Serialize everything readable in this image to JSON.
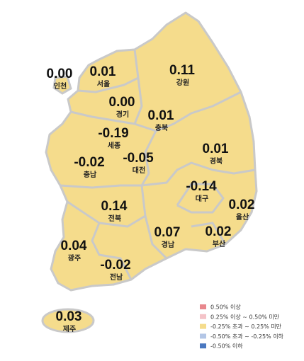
{
  "regions": [
    {
      "name": "인천",
      "value": "0.00"
    },
    {
      "name": "서울",
      "value": "0.01"
    },
    {
      "name": "강원",
      "value": "0.11"
    },
    {
      "name": "경기",
      "value": "0.00"
    },
    {
      "name": "충북",
      "value": "0.01"
    },
    {
      "name": "세종",
      "value": "-0.19"
    },
    {
      "name": "경북",
      "value": "0.01"
    },
    {
      "name": "충남",
      "value": "-0.02"
    },
    {
      "name": "대전",
      "value": "-0.05"
    },
    {
      "name": "대구",
      "value": "-0.14"
    },
    {
      "name": "울산",
      "value": "0.02"
    },
    {
      "name": "전북",
      "value": "0.14"
    },
    {
      "name": "경남",
      "value": "0.07"
    },
    {
      "name": "부산",
      "value": "0.02"
    },
    {
      "name": "광주",
      "value": "0.04"
    },
    {
      "name": "전남",
      "value": "-0.02"
    },
    {
      "name": "제주",
      "value": "0.03"
    }
  ],
  "legend": [
    {
      "label": "0.50% 이상",
      "color": "#e8878d"
    },
    {
      "label": "0.25% 이상 ~ 0.50% 미만",
      "color": "#f4c3c8"
    },
    {
      "label": "-0.25% 초과 ~ 0.25% 미만",
      "color": "#f5dc8c"
    },
    {
      "label": "-0.50% 초과 ~ -0.25% 이하",
      "color": "#b3c6e6"
    },
    {
      "label": "-0.50% 이하",
      "color": "#4a78c0"
    }
  ]
}
